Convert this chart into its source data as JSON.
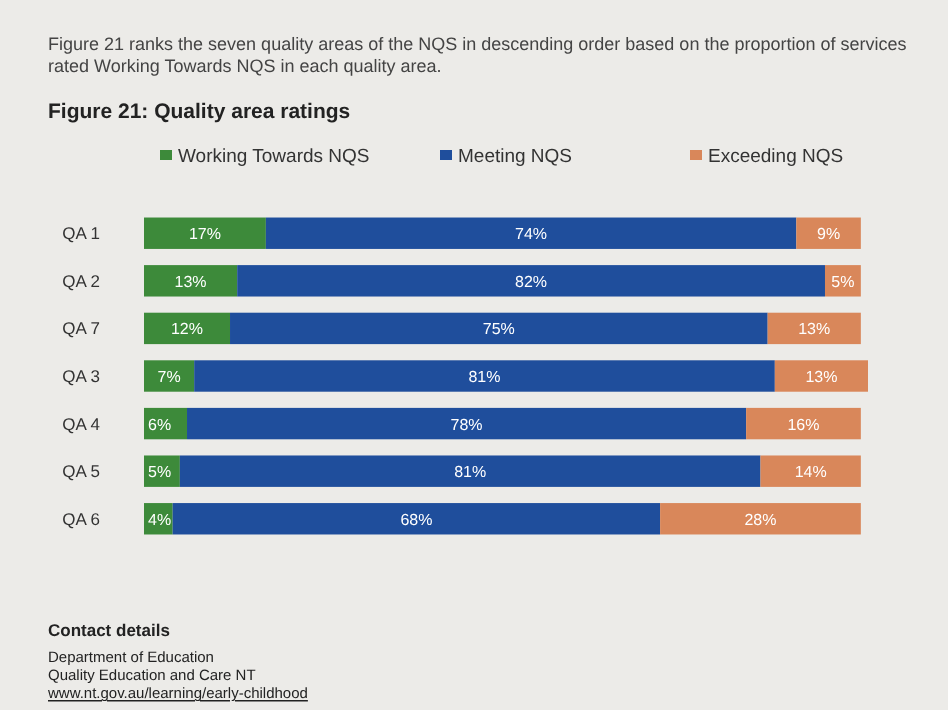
{
  "chart_data": {
    "type": "bar",
    "orientation": "horizontal",
    "stacked": true,
    "subtitle": "Figure 21 ranks the seven quality areas of the NQS in descending order based on the proportion of services rated Working Towards NQS in each quality area.",
    "title": "Figure 21: Quality area ratings",
    "categories": [
      "QA 1",
      "QA 2",
      "QA 7",
      "QA 3",
      "QA 4",
      "QA 5",
      "QA 6"
    ],
    "series": [
      {
        "name": "Working Towards NQS",
        "color": "#3d8a3a",
        "values": [
          17,
          13,
          12,
          7,
          6,
          5,
          4
        ],
        "value_labels": [
          "17%",
          "13%",
          "12%",
          "7%",
          "6%",
          "5%",
          "4%"
        ]
      },
      {
        "name": "Meeting NQS",
        "color": "#1f4e9c",
        "values": [
          74,
          82,
          75,
          81,
          78,
          81,
          68
        ],
        "value_labels": [
          "74%",
          "82%",
          "75%",
          "81%",
          "78%",
          "81%",
          "68%"
        ]
      },
      {
        "name": "Exceeding NQS",
        "color": "#d9875a",
        "values": [
          9,
          5,
          13,
          13,
          16,
          14,
          28
        ],
        "value_labels": [
          "9%",
          "5%",
          "13%",
          "13%",
          "16%",
          "14%",
          "28%"
        ]
      }
    ],
    "legend": "top",
    "annotations": [
      "Contact details",
      "Department of Education",
      "Quality Education and Care NT",
      "www.nt.gov.au/learning/early-childhood"
    ]
  }
}
